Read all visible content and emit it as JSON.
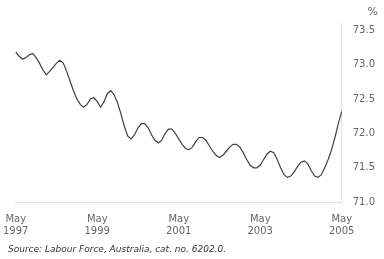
{
  "chart_data": {
    "type": "line",
    "ylabel": "%",
    "annotations": [
      "Source: Labour Force, Australia, cat. no. 6202.0."
    ],
    "categories": [
      "May\n1997",
      null,
      null,
      null,
      null,
      null,
      null,
      null,
      null,
      null,
      null,
      null,
      null,
      null,
      null,
      null,
      null,
      null,
      null,
      null,
      null,
      null,
      null,
      null,
      "May\n1999",
      null,
      null,
      null,
      null,
      null,
      null,
      null,
      null,
      null,
      null,
      null,
      null,
      null,
      null,
      null,
      null,
      null,
      null,
      null,
      null,
      null,
      null,
      null,
      "May\n2001",
      null,
      null,
      null,
      null,
      null,
      null,
      null,
      null,
      null,
      null,
      null,
      null,
      null,
      null,
      null,
      null,
      null,
      null,
      null,
      null,
      null,
      null,
      null,
      "May\n2003",
      null,
      null,
      null,
      null,
      null,
      null,
      null,
      null,
      null,
      null,
      null,
      null,
      null,
      null,
      null,
      null,
      null,
      null,
      null,
      null,
      null,
      null,
      null,
      "May\n2005"
    ],
    "values": [
      73.18,
      73.12,
      73.08,
      73.1,
      73.14,
      73.16,
      73.1,
      73.02,
      72.92,
      72.85,
      72.9,
      72.96,
      73.02,
      73.06,
      73.02,
      72.9,
      72.76,
      72.62,
      72.5,
      72.42,
      72.38,
      72.42,
      72.5,
      72.52,
      72.46,
      72.38,
      72.46,
      72.58,
      72.62,
      72.56,
      72.44,
      72.28,
      72.1,
      71.96,
      71.92,
      71.98,
      72.08,
      72.14,
      72.14,
      72.08,
      71.98,
      71.9,
      71.86,
      71.9,
      72.0,
      72.06,
      72.06,
      72.0,
      71.92,
      71.84,
      71.78,
      71.76,
      71.8,
      71.88,
      71.94,
      71.94,
      71.9,
      71.82,
      71.74,
      71.68,
      71.65,
      71.68,
      71.74,
      71.8,
      71.84,
      71.84,
      71.8,
      71.72,
      71.62,
      71.54,
      71.5,
      71.5,
      71.54,
      71.62,
      71.7,
      71.74,
      71.72,
      71.62,
      71.5,
      71.4,
      71.36,
      71.38,
      71.44,
      71.52,
      71.58,
      71.6,
      71.56,
      71.46,
      71.38,
      71.36,
      71.4,
      71.5,
      71.62,
      71.76,
      71.94,
      72.14,
      72.32
    ],
    "color": "#404040",
    "ylim": [
      71.0,
      73.6
    ],
    "yticks": [
      {
        "value": 71.0,
        "label": "71.0"
      },
      {
        "value": 71.5,
        "label": "71.5"
      },
      {
        "value": 72.0,
        "label": "72.0"
      },
      {
        "value": 72.5,
        "label": "72.5"
      },
      {
        "value": 73.0,
        "label": "73.0"
      },
      {
        "value": 73.5,
        "label": "73.5"
      }
    ],
    "grid": false
  }
}
